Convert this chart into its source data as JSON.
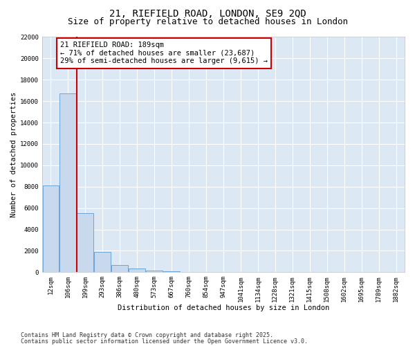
{
  "title_line1": "21, RIEFIELD ROAD, LONDON, SE9 2QD",
  "title_line2": "Size of property relative to detached houses in London",
  "xlabel": "Distribution of detached houses by size in London",
  "ylabel": "Number of detached properties",
  "bar_color": "#c8d9ee",
  "bar_edge_color": "#5b9bd5",
  "background_color": "#dce9f5",
  "grid_color": "#ffffff",
  "annotation_box_color": "#cc0000",
  "vline_color": "#cc0000",
  "bar_categories": [
    "12sqm",
    "106sqm",
    "199sqm",
    "293sqm",
    "386sqm",
    "480sqm",
    "573sqm",
    "667sqm",
    "760sqm",
    "854sqm",
    "947sqm",
    "1041sqm",
    "1134sqm",
    "1228sqm",
    "1321sqm",
    "1415sqm",
    "1508sqm",
    "1602sqm",
    "1695sqm",
    "1789sqm",
    "1882sqm"
  ],
  "bar_heights": [
    8100,
    16700,
    5500,
    1900,
    650,
    350,
    180,
    80,
    40,
    20,
    10,
    5,
    3,
    2,
    1,
    1,
    0,
    0,
    0,
    0,
    0
  ],
  "ylim": [
    0,
    22000
  ],
  "yticks": [
    0,
    2000,
    4000,
    6000,
    8000,
    10000,
    12000,
    14000,
    16000,
    18000,
    20000,
    22000
  ],
  "vline_x_index": 1.5,
  "annotation_text": "21 RIEFIELD ROAD: 189sqm\n← 71% of detached houses are smaller (23,687)\n29% of semi-detached houses are larger (9,615) →",
  "footer_line1": "Contains HM Land Registry data © Crown copyright and database right 2025.",
  "footer_line2": "Contains public sector information licensed under the Open Government Licence v3.0.",
  "fig_width": 6.0,
  "fig_height": 5.0,
  "title_fontsize": 10,
  "subtitle_fontsize": 9,
  "axis_label_fontsize": 7.5,
  "tick_fontsize": 6.5,
  "annotation_fontsize": 7.5,
  "footer_fontsize": 6.0
}
